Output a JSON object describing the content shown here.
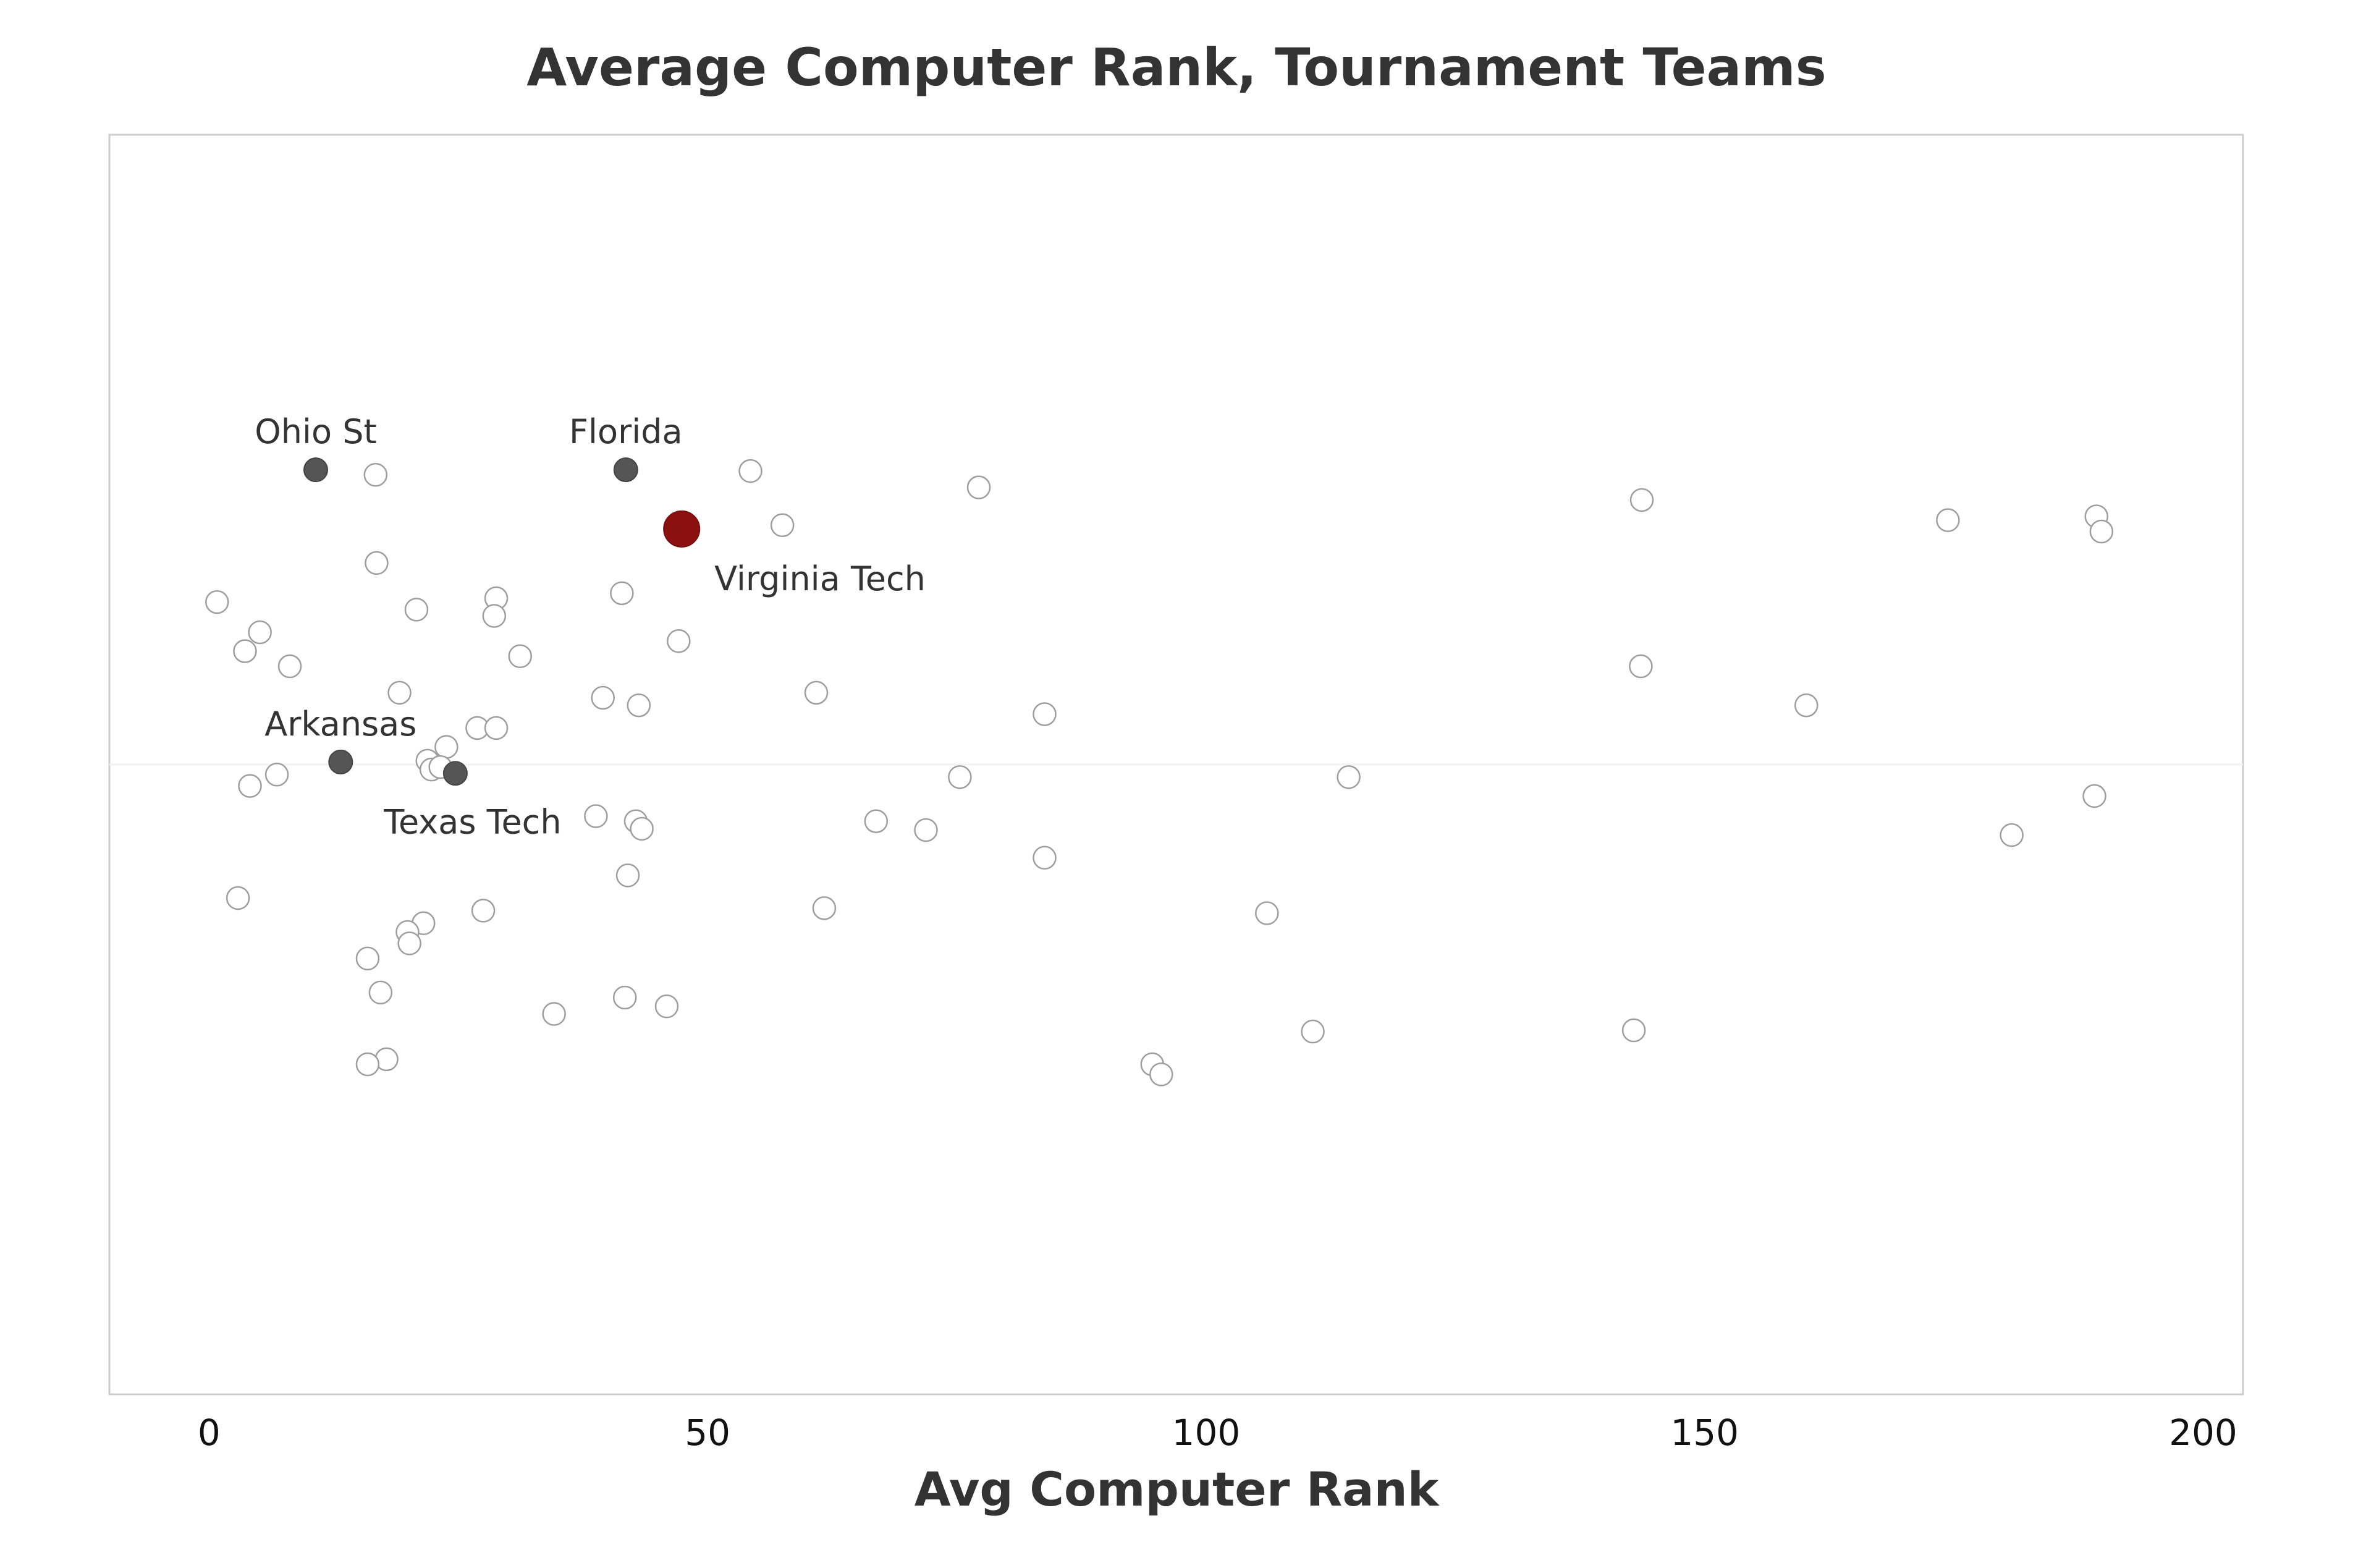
{
  "chart_data": {
    "type": "scatter",
    "title": "Average Computer Rank, Tournament Teams",
    "xlabel": "Avg Computer Rank",
    "ylabel": "",
    "xlim": [
      -10,
      204
    ],
    "ylim": [
      0,
      1
    ],
    "xticks": [
      0,
      50,
      100,
      150,
      200
    ],
    "grid": false,
    "colors": {
      "background_point_stroke": "#9e9e9e",
      "highlight": "#555555",
      "featured": "#8b1111",
      "frame": "#cccccc",
      "center_line": "#f2f2f2"
    },
    "background_points": [
      {
        "x": 16.7,
        "y": 0.73
      },
      {
        "x": 54.3,
        "y": 0.733
      },
      {
        "x": 77.2,
        "y": 0.72
      },
      {
        "x": 143.7,
        "y": 0.71
      },
      {
        "x": 57.5,
        "y": 0.69
      },
      {
        "x": 174.4,
        "y": 0.694
      },
      {
        "x": 189.3,
        "y": 0.697
      },
      {
        "x": 189.8,
        "y": 0.685
      },
      {
        "x": 16.8,
        "y": 0.66
      },
      {
        "x": 41.4,
        "y": 0.636
      },
      {
        "x": 0.8,
        "y": 0.629
      },
      {
        "x": 28.8,
        "y": 0.632
      },
      {
        "x": 20.8,
        "y": 0.623
      },
      {
        "x": 28.6,
        "y": 0.618
      },
      {
        "x": 5.1,
        "y": 0.605
      },
      {
        "x": 47.1,
        "y": 0.598
      },
      {
        "x": 3.6,
        "y": 0.59
      },
      {
        "x": 31.2,
        "y": 0.586
      },
      {
        "x": 8.1,
        "y": 0.578
      },
      {
        "x": 143.6,
        "y": 0.578
      },
      {
        "x": 19.1,
        "y": 0.557
      },
      {
        "x": 39.5,
        "y": 0.553
      },
      {
        "x": 60.9,
        "y": 0.557
      },
      {
        "x": 43.1,
        "y": 0.547
      },
      {
        "x": 160.2,
        "y": 0.547
      },
      {
        "x": 83.8,
        "y": 0.54
      },
      {
        "x": 26.9,
        "y": 0.529
      },
      {
        "x": 28.8,
        "y": 0.529
      },
      {
        "x": 23.8,
        "y": 0.514
      },
      {
        "x": 21.9,
        "y": 0.503
      },
      {
        "x": 22.3,
        "y": 0.496
      },
      {
        "x": 23.2,
        "y": 0.498
      },
      {
        "x": 6.8,
        "y": 0.492
      },
      {
        "x": 75.3,
        "y": 0.49
      },
      {
        "x": 114.3,
        "y": 0.49
      },
      {
        "x": 4.1,
        "y": 0.483
      },
      {
        "x": 189.1,
        "y": 0.475
      },
      {
        "x": 38.8,
        "y": 0.459
      },
      {
        "x": 42.8,
        "y": 0.455
      },
      {
        "x": 66.9,
        "y": 0.455
      },
      {
        "x": 43.4,
        "y": 0.449
      },
      {
        "x": 71.9,
        "y": 0.448
      },
      {
        "x": 180.8,
        "y": 0.444
      },
      {
        "x": 83.8,
        "y": 0.426
      },
      {
        "x": 42.0,
        "y": 0.412
      },
      {
        "x": 2.9,
        "y": 0.394
      },
      {
        "x": 61.7,
        "y": 0.386
      },
      {
        "x": 27.5,
        "y": 0.384
      },
      {
        "x": 106.1,
        "y": 0.382
      },
      {
        "x": 21.5,
        "y": 0.374
      },
      {
        "x": 19.9,
        "y": 0.367
      },
      {
        "x": 20.1,
        "y": 0.358
      },
      {
        "x": 15.9,
        "y": 0.346
      },
      {
        "x": 41.7,
        "y": 0.315
      },
      {
        "x": 45.9,
        "y": 0.308
      },
      {
        "x": 17.2,
        "y": 0.319
      },
      {
        "x": 34.6,
        "y": 0.302
      },
      {
        "x": 110.7,
        "y": 0.288
      },
      {
        "x": 142.9,
        "y": 0.289
      },
      {
        "x": 17.8,
        "y": 0.266
      },
      {
        "x": 15.9,
        "y": 0.262
      },
      {
        "x": 94.6,
        "y": 0.262
      },
      {
        "x": 95.5,
        "y": 0.254
      }
    ],
    "highlighted_points": [
      {
        "name": "Ohio St",
        "x": 10.7,
        "y": 0.734,
        "label_pos": "above"
      },
      {
        "name": "Florida",
        "x": 41.8,
        "y": 0.734,
        "label_pos": "above"
      },
      {
        "name": "Arkansas",
        "x": 13.2,
        "y": 0.502,
        "label_pos": "above"
      },
      {
        "name": "Texas Tech",
        "x": 24.7,
        "y": 0.493,
        "label_pos": "below"
      }
    ],
    "featured_point": {
      "name": "Virginia Tech",
      "x": 47.4,
      "y": 0.687,
      "label_pos": "below-right"
    }
  }
}
